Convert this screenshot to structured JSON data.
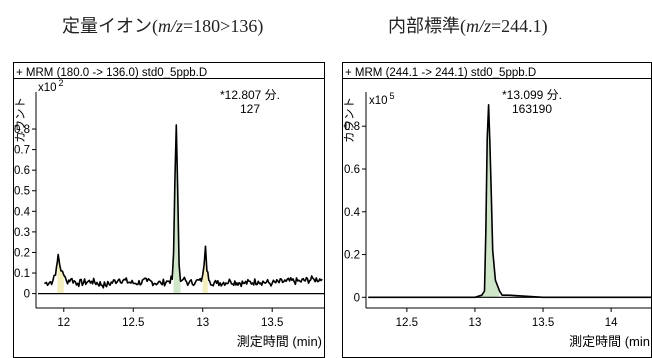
{
  "captions": {
    "left": {
      "pre": "定量イオン(",
      "em": "m/z",
      "post": "=180>136)"
    },
    "right": {
      "pre": "内部標準(",
      "em": "m/z",
      "post": "=244.1)"
    }
  },
  "chart_data": [
    {
      "type": "line",
      "header": "+ MRM (180.0 -> 136.0) std0_5ppb.D",
      "ylabel": "カウント",
      "xlabel": "測定時間 (min)",
      "y_multiplier": "x10",
      "y_exponent": "2",
      "xlim": [
        11.8,
        13.88
      ],
      "ylim": [
        -0.07,
        0.98
      ],
      "x_ticks": [
        12,
        12.5,
        13,
        13.5
      ],
      "x_tick_labels": [
        "12",
        "12.5",
        "13",
        "13.5"
      ],
      "y_ticks": [
        0,
        0.1,
        0.2,
        0.3,
        0.4,
        0.5,
        0.6,
        0.7,
        0.8
      ],
      "y_tick_labels": [
        "0",
        "0.1",
        "0.2",
        "0.3",
        "0.4",
        "0.5",
        "0.6",
        "0.7",
        "0.8"
      ],
      "peak_annotation": {
        "rt_label": "*12.807 分.",
        "area_label": "127"
      },
      "x": [
        11.86,
        11.92,
        11.94,
        11.96,
        11.98,
        12.0,
        12.02,
        12.05,
        12.1,
        12.2,
        12.3,
        12.4,
        12.5,
        12.6,
        12.7,
        12.75,
        12.78,
        12.79,
        12.8,
        12.81,
        12.82,
        12.83,
        12.84,
        12.86,
        12.9,
        12.95,
        12.99,
        13.01,
        13.02,
        13.03,
        13.05,
        13.1,
        13.2,
        13.3,
        13.4,
        13.5,
        13.6,
        13.7,
        13.8,
        13.86
      ],
      "y": [
        0.05,
        0.06,
        0.09,
        0.19,
        0.11,
        0.09,
        0.06,
        0.07,
        0.05,
        0.06,
        0.04,
        0.07,
        0.05,
        0.06,
        0.05,
        0.06,
        0.07,
        0.2,
        0.55,
        0.82,
        0.5,
        0.14,
        0.06,
        0.07,
        0.05,
        0.06,
        0.06,
        0.14,
        0.23,
        0.11,
        0.06,
        0.05,
        0.06,
        0.05,
        0.06,
        0.05,
        0.06,
        0.06,
        0.07,
        0.07
      ]
    },
    {
      "type": "line",
      "header": "+ MRM (244.1 -> 244.1) std0_5ppb.D",
      "ylabel": "カウント",
      "xlabel": "測定時間 (min",
      "y_multiplier": "x10",
      "y_exponent": "5",
      "xlim": [
        12.2,
        14.3
      ],
      "ylim": [
        -0.05,
        0.96
      ],
      "x_ticks": [
        12.5,
        13,
        13.5,
        14
      ],
      "x_tick_labels": [
        "12.5",
        "13",
        "13.5",
        "14"
      ],
      "y_ticks": [
        0,
        0.2,
        0.4,
        0.6,
        0.8
      ],
      "y_tick_labels": [
        "0",
        "0.2",
        "0.4",
        "0.6",
        "0.8"
      ],
      "peak_annotation": {
        "rt_label": "*13.099 分.",
        "area_label": "163190"
      },
      "x": [
        12.22,
        12.5,
        12.8,
        13.0,
        13.05,
        13.07,
        13.08,
        13.09,
        13.1,
        13.11,
        13.12,
        13.13,
        13.15,
        13.18,
        13.2,
        13.25,
        13.5,
        14.0,
        14.3
      ],
      "y": [
        0,
        0,
        0,
        0,
        0.01,
        0.03,
        0.3,
        0.74,
        0.9,
        0.72,
        0.48,
        0.22,
        0.08,
        0.03,
        0.01,
        0.01,
        0,
        0,
        0
      ]
    }
  ]
}
